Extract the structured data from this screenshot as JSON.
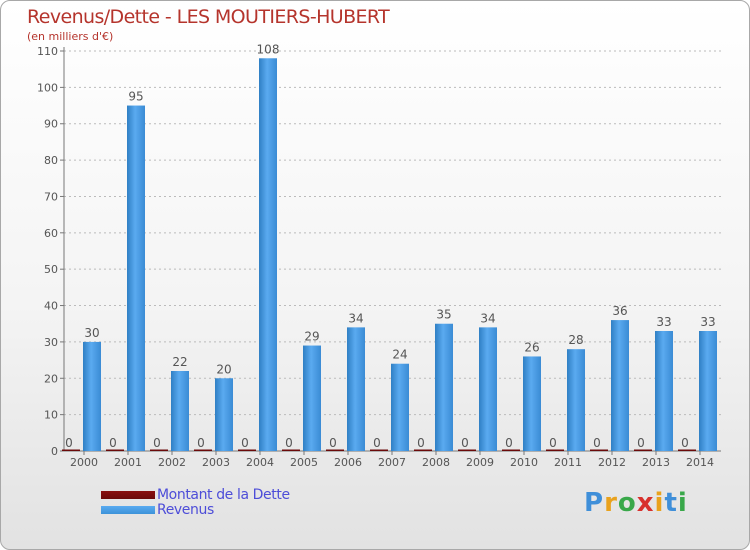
{
  "colors": {
    "title": "#b5342c",
    "axis_text": "#555555",
    "grid": "#bbbbbb",
    "revenus": "#3c92d8",
    "dette": "#6b0a0a",
    "legend_text": "#4d4dd8"
  },
  "chart_data": {
    "type": "bar",
    "title": "Revenus/Dette - LES MOUTIERS-HUBERT",
    "subtitle": "(en milliers d'€)",
    "categories": [
      "2000",
      "2001",
      "2002",
      "2003",
      "2004",
      "2005",
      "2006",
      "2007",
      "2008",
      "2009",
      "2010",
      "2011",
      "2012",
      "2013",
      "2014"
    ],
    "series": [
      {
        "name": "Montant de la Dette",
        "color": "#6b0a0a",
        "values": [
          0,
          0,
          0,
          0,
          0,
          0,
          0,
          0,
          0,
          0,
          0,
          0,
          0,
          0,
          0
        ]
      },
      {
        "name": "Revenus",
        "color": "#3c92d8",
        "values": [
          30,
          95,
          22,
          20,
          108,
          29,
          34,
          24,
          35,
          34,
          26,
          28,
          36,
          33,
          33
        ]
      }
    ],
    "ylim": [
      0,
      110
    ],
    "yticks": [
      0,
      10,
      20,
      30,
      40,
      50,
      60,
      70,
      80,
      90,
      100,
      110
    ],
    "grid": true,
    "legend_position": "bottom-left",
    "xlabel": "",
    "ylabel": ""
  },
  "logo": {
    "letters": [
      "P",
      "r",
      "o",
      "x",
      "i",
      "t",
      "i"
    ],
    "colors": [
      "#3f8fd9",
      "#e9a21d",
      "#39a84a",
      "#d8312d",
      "#e9a21d",
      "#3f8fd9",
      "#39a84a"
    ]
  }
}
